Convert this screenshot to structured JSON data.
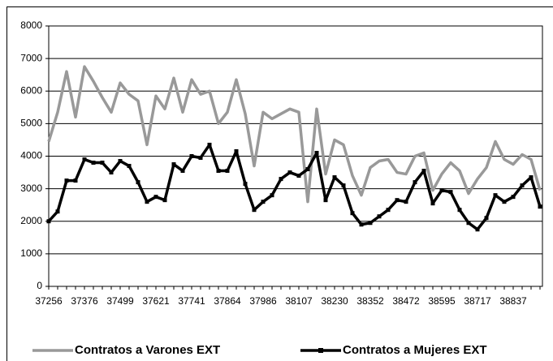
{
  "chart_data": {
    "type": "line",
    "categories": [
      37256,
      null,
      null,
      null,
      37376,
      null,
      null,
      null,
      37499,
      null,
      null,
      null,
      37621,
      null,
      null,
      null,
      37741,
      null,
      null,
      null,
      37864,
      null,
      null,
      null,
      37986,
      null,
      null,
      null,
      38107,
      null,
      null,
      null,
      38230,
      null,
      null,
      null,
      38352,
      null,
      null,
      null,
      38472,
      null,
      null,
      null,
      38595,
      null,
      null,
      null,
      38717,
      null,
      null,
      null,
      38837,
      null,
      null,
      null
    ],
    "series": [
      {
        "name": "Contratos a Varones EXT",
        "color": "#999999",
        "marker": false,
        "values": [
          4450,
          5350,
          6600,
          5200,
          6750,
          6300,
          5800,
          5350,
          6250,
          5900,
          5700,
          4350,
          5850,
          5450,
          6400,
          5350,
          6350,
          5900,
          6000,
          5000,
          5350,
          6350,
          5300,
          3700,
          5350,
          5150,
          5300,
          5450,
          5350,
          2600,
          5450,
          3450,
          4500,
          4350,
          3400,
          2800,
          3650,
          3850,
          3900,
          3500,
          3450,
          4000,
          4100,
          2950,
          3450,
          3800,
          3550,
          2850,
          3300,
          3650,
          4450,
          3900,
          3750,
          4050,
          3900,
          2950
        ]
      },
      {
        "name": "Contratos a Mujeres EXT",
        "color": "#000000",
        "marker": true,
        "values": [
          2000,
          2300,
          3250,
          3250,
          3900,
          3800,
          3800,
          3500,
          3850,
          3700,
          3200,
          2600,
          2750,
          2650,
          3750,
          3550,
          4000,
          3950,
          4350,
          3550,
          3550,
          4150,
          3150,
          2350,
          2600,
          2800,
          3300,
          3500,
          3400,
          3600,
          4100,
          2650,
          3350,
          3100,
          2250,
          1900,
          1950,
          2150,
          2350,
          2650,
          2600,
          3200,
          3550,
          2550,
          2950,
          2900,
          2350,
          1950,
          1750,
          2100,
          2800,
          2600,
          2750,
          3100,
          3350,
          2450
        ]
      }
    ],
    "ylim": [
      0,
      8000
    ],
    "yticks": [
      0,
      1000,
      2000,
      3000,
      4000,
      5000,
      6000,
      7000,
      8000
    ],
    "grid": true,
    "legend": "bottom"
  }
}
